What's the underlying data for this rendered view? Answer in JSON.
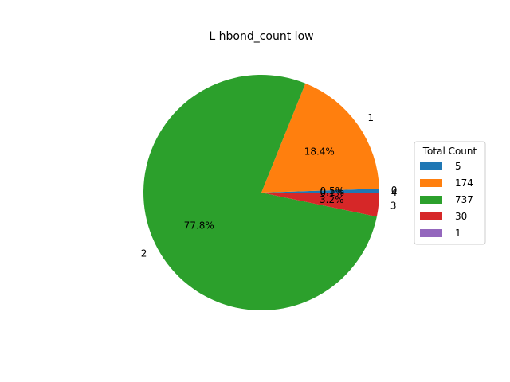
{
  "chart_data": {
    "type": "pie",
    "title": "L hbond_count low",
    "categories": [
      "0",
      "1",
      "2",
      "3",
      "4"
    ],
    "values": [
      5,
      174,
      737,
      30,
      1
    ],
    "percent_labels": [
      "0.5%",
      "18.4%",
      "77.8%",
      "3.2%",
      "0.1%"
    ],
    "colors": [
      "#1f77b4",
      "#ff7f0e",
      "#2ca02c",
      "#d62728",
      "#9467bd"
    ],
    "start_angle_deg": 0,
    "direction": "counterclockwise",
    "legend": {
      "title": "Total Count",
      "entries": [
        "5",
        "174",
        "737",
        "30",
        "1"
      ],
      "placement": "right"
    }
  }
}
